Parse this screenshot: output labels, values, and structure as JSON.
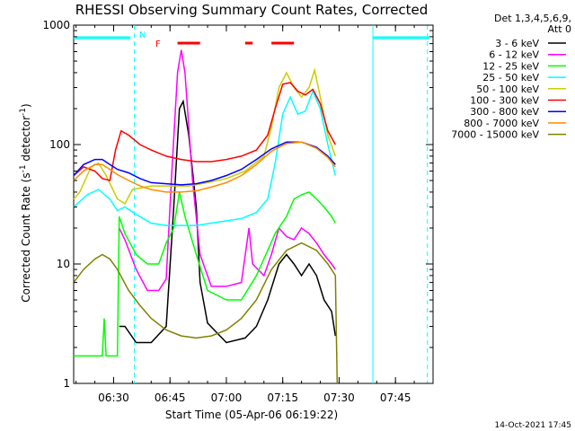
{
  "chart_data": {
    "type": "line",
    "title": "RHESSI Observing Summary Count Rates, Corrected",
    "xlabel": "Start Time (05-Apr-06 06:19:22)",
    "ylabel": "Corrected Count Rate (s",
    "ylabel_sup1": "-1",
    "ylabel_mid": " detector",
    "ylabel_sup2": "-1",
    "ylabel_end": ")",
    "y_scale": "log",
    "ylim": [
      1,
      1000
    ],
    "xlim": [
      "06:19:22",
      "07:55:00"
    ],
    "x_ticks": [
      "06:30",
      "06:45",
      "07:00",
      "07:15",
      "07:30",
      "07:45"
    ],
    "y_ticks": [
      "1",
      "10",
      "100",
      "1000"
    ],
    "legend_header": [
      "Det 1,3,4,5,6,9,",
      "Att 0"
    ],
    "legend_position": "outside-right",
    "timestamp": "14-Oct-2021 17:45",
    "flags": {
      "N_label": "N",
      "F_label": "F",
      "night_color": "#00ffff",
      "flare_color": "#ff0000",
      "night_bars": [
        [
          "06:19:22",
          "06:34:30"
        ],
        [
          "07:39:00",
          "07:54:00"
        ]
      ],
      "night_lines": [
        "06:35:30",
        "07:39:00",
        "07:53:30"
      ],
      "flare_bars": [
        [
          "06:47:00",
          "06:53:00"
        ],
        [
          "07:05:00",
          "07:07:00"
        ],
        [
          "07:12:00",
          "07:18:00"
        ]
      ]
    },
    "series": [
      {
        "name": "3 - 6 keV",
        "color": "#000000",
        "data": [
          [
            "06:31:30",
            3.0
          ],
          [
            "06:33:00",
            3.0
          ],
          [
            "06:36:00",
            2.2
          ],
          [
            "06:40:00",
            2.2
          ],
          [
            "06:44:00",
            3.0
          ],
          [
            "06:46:00",
            30
          ],
          [
            "06:47:30",
            200
          ],
          [
            "06:48:30",
            230
          ],
          [
            "06:50:00",
            120
          ],
          [
            "06:52:00",
            30
          ],
          [
            "06:53:00",
            7
          ],
          [
            "06:55:00",
            3.2
          ],
          [
            "07:00:00",
            2.2
          ],
          [
            "07:05:00",
            2.4
          ],
          [
            "07:08:00",
            3.0
          ],
          [
            "07:11:00",
            5
          ],
          [
            "07:14:00",
            10
          ],
          [
            "07:16:00",
            12
          ],
          [
            "07:18:00",
            10
          ],
          [
            "07:20:00",
            8
          ],
          [
            "07:22:00",
            10
          ],
          [
            "07:24:00",
            8
          ],
          [
            "07:26:00",
            5
          ],
          [
            "07:28:00",
            4
          ],
          [
            "07:29:00",
            2.5
          ]
        ]
      },
      {
        "name": "6 - 12 keV",
        "color": "#ff00ff",
        "data": [
          [
            "06:31:30",
            20
          ],
          [
            "06:33:00",
            16
          ],
          [
            "06:36:00",
            9
          ],
          [
            "06:39:00",
            6
          ],
          [
            "06:42:00",
            6
          ],
          [
            "06:44:00",
            7.5
          ],
          [
            "06:45:30",
            60
          ],
          [
            "06:47:00",
            400
          ],
          [
            "06:48:00",
            620
          ],
          [
            "06:49:00",
            400
          ],
          [
            "06:51:00",
            50
          ],
          [
            "06:53:00",
            12
          ],
          [
            "06:56:00",
            6.5
          ],
          [
            "07:00:00",
            6.5
          ],
          [
            "07:04:00",
            7
          ],
          [
            "07:06:00",
            20
          ],
          [
            "07:07:00",
            10
          ],
          [
            "07:10:00",
            8
          ],
          [
            "07:12:00",
            12
          ],
          [
            "07:14:00",
            20
          ],
          [
            "07:16:00",
            17
          ],
          [
            "07:18:00",
            16
          ],
          [
            "07:20:00",
            20
          ],
          [
            "07:22:00",
            18
          ],
          [
            "07:24:00",
            15
          ],
          [
            "07:26:00",
            12
          ],
          [
            "07:28:00",
            10
          ],
          [
            "07:29:00",
            9
          ]
        ]
      },
      {
        "name": "12 - 25 keV",
        "color": "#00ff00",
        "data": [
          [
            "06:19:22",
            1.7
          ],
          [
            "06:24:00",
            1.7
          ],
          [
            "06:27:00",
            1.7
          ],
          [
            "06:27:30",
            3.5
          ],
          [
            "06:28:00",
            1.7
          ],
          [
            "06:31:00",
            1.7
          ],
          [
            "06:31:30",
            25
          ],
          [
            "06:33:00",
            18
          ],
          [
            "06:36:00",
            12
          ],
          [
            "06:39:00",
            10
          ],
          [
            "06:42:00",
            10
          ],
          [
            "06:44:00",
            15
          ],
          [
            "06:46:00",
            20
          ],
          [
            "06:47:30",
            40
          ],
          [
            "06:49:00",
            25
          ],
          [
            "06:52:00",
            12
          ],
          [
            "06:55:00",
            6
          ],
          [
            "07:00:00",
            5
          ],
          [
            "07:04:00",
            5
          ],
          [
            "07:08:00",
            8
          ],
          [
            "07:11:00",
            13
          ],
          [
            "07:13:00",
            18
          ],
          [
            "07:16:00",
            25
          ],
          [
            "07:18:00",
            35
          ],
          [
            "07:20:00",
            38
          ],
          [
            "07:22:00",
            40
          ],
          [
            "07:24:00",
            35
          ],
          [
            "07:26:00",
            30
          ],
          [
            "07:28:00",
            25
          ],
          [
            "07:29:00",
            22
          ]
        ]
      },
      {
        "name": "25 - 50 keV",
        "color": "#00ffff",
        "data": [
          [
            "06:19:22",
            30
          ],
          [
            "06:23:00",
            38
          ],
          [
            "06:26:00",
            42
          ],
          [
            "06:29:00",
            35
          ],
          [
            "06:31:00",
            28
          ],
          [
            "06:33:00",
            30
          ],
          [
            "06:36:00",
            26
          ],
          [
            "06:40:00",
            22
          ],
          [
            "06:44:00",
            21
          ],
          [
            "06:48:00",
            21
          ],
          [
            "06:52:00",
            21
          ],
          [
            "06:56:00",
            22
          ],
          [
            "07:00:00",
            23
          ],
          [
            "07:04:00",
            24
          ],
          [
            "07:08:00",
            27
          ],
          [
            "07:11:00",
            35
          ],
          [
            "07:13:00",
            70
          ],
          [
            "07:15:00",
            180
          ],
          [
            "07:17:00",
            250
          ],
          [
            "07:19:00",
            180
          ],
          [
            "07:21:00",
            190
          ],
          [
            "07:23:00",
            280
          ],
          [
            "07:25:00",
            200
          ],
          [
            "07:27:00",
            100
          ],
          [
            "07:29:00",
            55
          ]
        ]
      },
      {
        "name": "50 - 100 keV",
        "color": "#cccc00",
        "data": [
          [
            "06:19:22",
            35
          ],
          [
            "06:21:00",
            40
          ],
          [
            "06:24:00",
            65
          ],
          [
            "06:26:00",
            70
          ],
          [
            "06:28:00",
            55
          ],
          [
            "06:31:00",
            35
          ],
          [
            "06:33:00",
            32
          ],
          [
            "06:35:00",
            42
          ],
          [
            "06:40:00",
            45
          ],
          [
            "06:45:00",
            45
          ],
          [
            "06:50:00",
            45
          ],
          [
            "06:55:00",
            48
          ],
          [
            "07:00:00",
            52
          ],
          [
            "07:05:00",
            60
          ],
          [
            "07:10:00",
            80
          ],
          [
            "07:12:00",
            140
          ],
          [
            "07:14:00",
            300
          ],
          [
            "07:16:00",
            400
          ],
          [
            "07:18:00",
            300
          ],
          [
            "07:20:00",
            250
          ],
          [
            "07:22:00",
            300
          ],
          [
            "07:23:30",
            420
          ],
          [
            "07:25:00",
            250
          ],
          [
            "07:27:00",
            120
          ],
          [
            "07:29:00",
            80
          ]
        ]
      },
      {
        "name": "100 - 300 keV",
        "color": "#ff0000",
        "data": [
          [
            "06:19:22",
            55
          ],
          [
            "06:22:00",
            65
          ],
          [
            "06:25:00",
            60
          ],
          [
            "06:27:00",
            52
          ],
          [
            "06:29:00",
            50
          ],
          [
            "06:30:30",
            90
          ],
          [
            "06:32:00",
            130
          ],
          [
            "06:34:00",
            120
          ],
          [
            "06:37:00",
            100
          ],
          [
            "06:40:00",
            90
          ],
          [
            "06:44:00",
            80
          ],
          [
            "06:48:00",
            75
          ],
          [
            "06:52:00",
            72
          ],
          [
            "06:56:00",
            72
          ],
          [
            "07:00:00",
            75
          ],
          [
            "07:04:00",
            80
          ],
          [
            "07:08:00",
            90
          ],
          [
            "07:11:00",
            120
          ],
          [
            "07:13:00",
            200
          ],
          [
            "07:15:00",
            320
          ],
          [
            "07:17:00",
            330
          ],
          [
            "07:19:00",
            280
          ],
          [
            "07:21:00",
            260
          ],
          [
            "07:23:00",
            290
          ],
          [
            "07:25:00",
            220
          ],
          [
            "07:27:00",
            130
          ],
          [
            "07:29:00",
            100
          ]
        ]
      },
      {
        "name": "300 - 800 keV",
        "color": "#0000ff",
        "data": [
          [
            "06:19:22",
            55
          ],
          [
            "06:22:00",
            68
          ],
          [
            "06:25:00",
            75
          ],
          [
            "06:27:00",
            75
          ],
          [
            "06:29:00",
            68
          ],
          [
            "06:31:00",
            62
          ],
          [
            "06:34:00",
            58
          ],
          [
            "06:37:00",
            52
          ],
          [
            "06:40:00",
            48
          ],
          [
            "06:44:00",
            47
          ],
          [
            "06:48:00",
            46
          ],
          [
            "06:52:00",
            47
          ],
          [
            "06:56:00",
            50
          ],
          [
            "07:00:00",
            55
          ],
          [
            "07:04:00",
            62
          ],
          [
            "07:08:00",
            75
          ],
          [
            "07:12:00",
            92
          ],
          [
            "07:16:00",
            105
          ],
          [
            "07:20:00",
            105
          ],
          [
            "07:24:00",
            95
          ],
          [
            "07:27:00",
            80
          ],
          [
            "07:29:00",
            68
          ]
        ]
      },
      {
        "name": "800 - 7000 keV",
        "color": "#ff8c00",
        "data": [
          [
            "06:19:22",
            50
          ],
          [
            "06:22:00",
            60
          ],
          [
            "06:25:00",
            68
          ],
          [
            "06:27:00",
            68
          ],
          [
            "06:29:00",
            62
          ],
          [
            "06:31:00",
            56
          ],
          [
            "06:34:00",
            50
          ],
          [
            "06:37:00",
            45
          ],
          [
            "06:40:00",
            42
          ],
          [
            "06:44:00",
            40
          ],
          [
            "06:48:00",
            40
          ],
          [
            "06:52:00",
            41
          ],
          [
            "06:56:00",
            44
          ],
          [
            "07:00:00",
            48
          ],
          [
            "07:04:00",
            55
          ],
          [
            "07:08:00",
            68
          ],
          [
            "07:12:00",
            88
          ],
          [
            "07:16:00",
            102
          ],
          [
            "07:20:00",
            105
          ],
          [
            "07:24:00",
            93
          ],
          [
            "07:27:00",
            78
          ],
          [
            "07:29:00",
            65
          ]
        ]
      },
      {
        "name": "7000 - 15000 keV",
        "color": "#808000",
        "data": [
          [
            "06:19:22",
            7
          ],
          [
            "06:22:00",
            9
          ],
          [
            "06:25:00",
            11
          ],
          [
            "06:27:00",
            12
          ],
          [
            "06:29:00",
            11
          ],
          [
            "06:31:00",
            9
          ],
          [
            "06:34:00",
            6
          ],
          [
            "06:37:00",
            4.5
          ],
          [
            "06:40:00",
            3.5
          ],
          [
            "06:44:00",
            2.8
          ],
          [
            "06:48:00",
            2.5
          ],
          [
            "06:52:00",
            2.4
          ],
          [
            "06:56:00",
            2.5
          ],
          [
            "07:00:00",
            2.8
          ],
          [
            "07:04:00",
            3.5
          ],
          [
            "07:08:00",
            5
          ],
          [
            "07:12:00",
            9
          ],
          [
            "07:16:00",
            13
          ],
          [
            "07:20:00",
            15
          ],
          [
            "07:24:00",
            13
          ],
          [
            "07:27:00",
            10
          ],
          [
            "07:29:00",
            8
          ],
          [
            "07:29:30",
            1
          ]
        ]
      }
    ]
  }
}
